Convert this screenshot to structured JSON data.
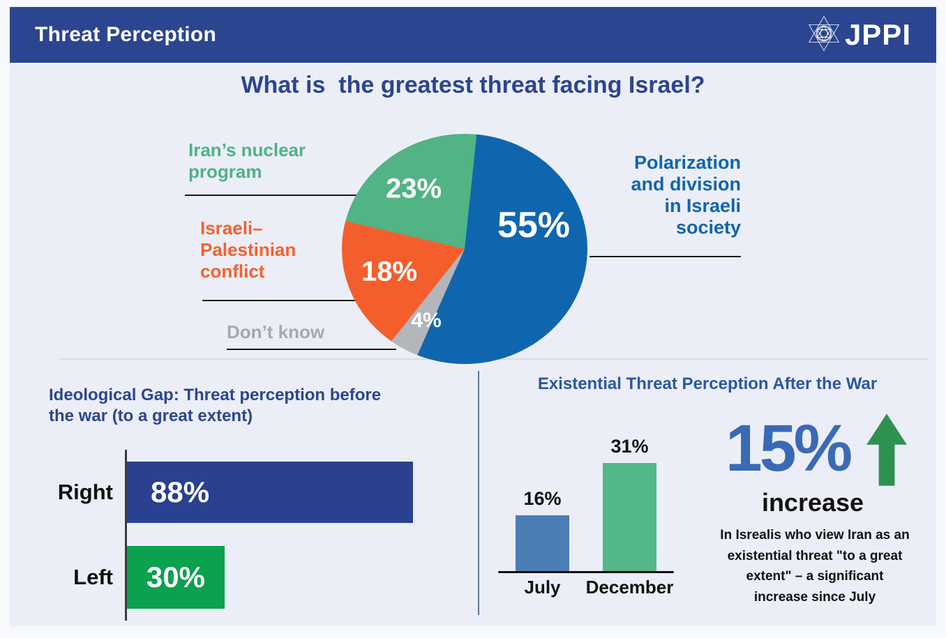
{
  "header": {
    "title": "Threat Perception",
    "logo_text": "JPPI",
    "bar_color": "#2b4590"
  },
  "colors": {
    "page_bg": "#f8f9fc",
    "content_bg": "#eceef7",
    "title_blue": "#2b4590",
    "divider_gray": "#d9dbe3",
    "divider_blue": "#5a7896"
  },
  "chart_data": [
    {
      "type": "pie",
      "title": "What is  the greatest threat facing Israel?",
      "start_angle_deg_from_top": 6,
      "legend": "leader-line labels around pie",
      "slices": [
        {
          "label": "Polarization\nand division\nin Israeli\nsociety",
          "value": 55,
          "pct_label": "55%",
          "color": "#1066ae",
          "label_color": "#1065ae"
        },
        {
          "label": "Iran’s nuclear\nprogram",
          "value": 23,
          "pct_label": "23%",
          "color": "#52b385",
          "label_color": "#4db286"
        },
        {
          "label": "Israeli–\nPalestinian\nconflict",
          "value": 18,
          "pct_label": "18%",
          "color": "#f45e2d",
          "label_color": "#f4612e"
        },
        {
          "label": "Don’t know",
          "value": 4,
          "pct_label": "4%",
          "color": "#b3b6ba",
          "label_color": "#a6a8ab"
        }
      ]
    },
    {
      "type": "bar",
      "orientation": "horizontal",
      "title": "Ideological Gap: Threat perception before\nthe war (to a great extent)",
      "categories": [
        "Right",
        "Left"
      ],
      "values": [
        88,
        30
      ],
      "value_labels": [
        "88%",
        "30%"
      ],
      "bar_colors": [
        "#2a4190",
        "#0aa14f"
      ],
      "xlim": [
        0,
        100
      ],
      "grid": false
    },
    {
      "type": "bar",
      "orientation": "vertical",
      "title": "Existential Threat Perception After the War",
      "categories": [
        "July",
        "December"
      ],
      "values": [
        16,
        31
      ],
      "value_labels": [
        "16%",
        "31%"
      ],
      "bar_colors": [
        "#4a7eb5",
        "#54b787"
      ],
      "ylim": [
        0,
        35
      ],
      "grid": false,
      "annotation": {
        "stat": "15%",
        "direction": "up",
        "stat_color": "#3a6ab5",
        "arrow_color": "#2d9150",
        "label": "increase",
        "description": "In Isrealis who view Iran as an\nexistential threat \"to a great\nextent\" – a significant\nincrease since July"
      }
    }
  ]
}
